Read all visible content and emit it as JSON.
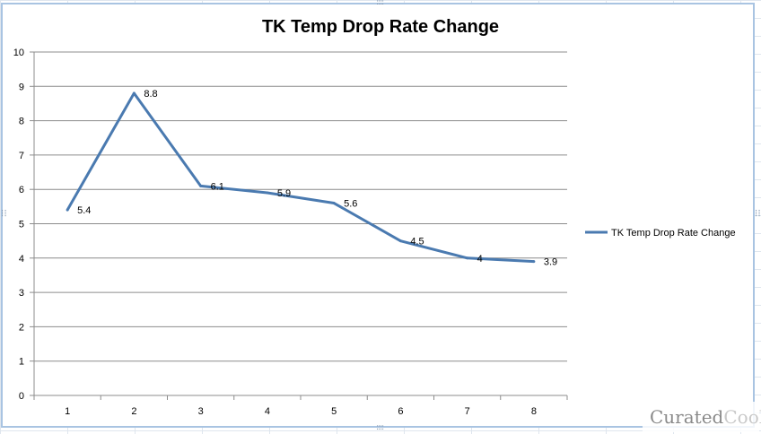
{
  "chart_data": {
    "type": "line",
    "title": "TK Temp Drop Rate Change",
    "xlabel": "",
    "ylabel": "",
    "categories": [
      "1",
      "2",
      "3",
      "4",
      "5",
      "6",
      "7",
      "8"
    ],
    "series": [
      {
        "name": "TK Temp Drop Rate Change",
        "values": [
          5.4,
          8.8,
          6.1,
          5.9,
          5.6,
          4.5,
          4,
          3.9
        ],
        "labels": [
          "5.4",
          "8.8",
          "6.1",
          "5.9",
          "5.6",
          "4.5",
          "4",
          "3.9"
        ],
        "color": "#4a7ab0"
      }
    ],
    "ylim": [
      0,
      10
    ],
    "yticks": [
      "0",
      "1",
      "2",
      "3",
      "4",
      "5",
      "6",
      "7",
      "8",
      "9",
      "10"
    ],
    "grid": true,
    "legend_position": "right"
  },
  "watermark": {
    "part1": "Curated",
    "part2": "Cook"
  },
  "colors": {
    "line": "#4a7ab0",
    "gridline": "#8c8c8c",
    "frame": "#a9c4e2"
  }
}
